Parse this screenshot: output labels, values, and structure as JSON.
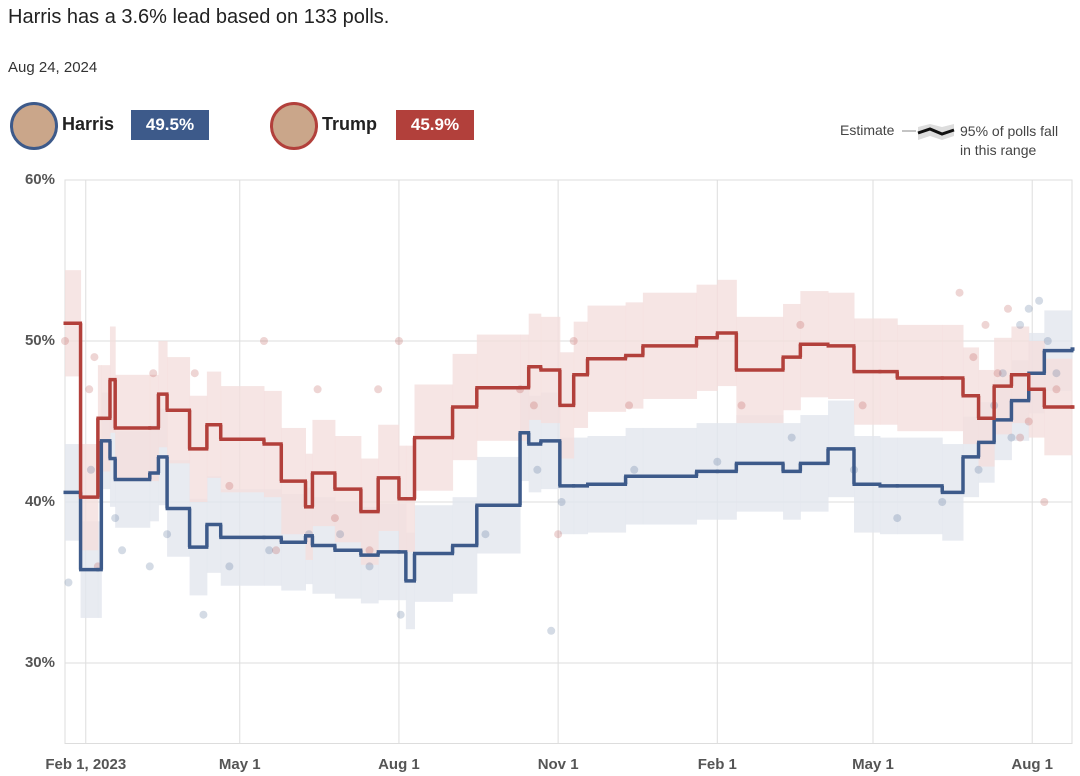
{
  "chart_data": {
    "type": "line",
    "title": "Harris has a 3.6% lead based on 133 polls.",
    "subtitle": "Aug 24, 2024",
    "legend": {
      "line_label": "Estimate",
      "band_label": "95% of polls fall in this range"
    },
    "x": [
      "2023-01-20",
      "2023-01-29",
      "2023-02-08",
      "2023-02-10",
      "2023-02-15",
      "2023-02-18",
      "2023-03-10",
      "2023-03-15",
      "2023-03-20",
      "2023-04-02",
      "2023-04-12",
      "2023-04-20",
      "2023-05-15",
      "2023-05-25",
      "2023-06-08",
      "2023-06-12",
      "2023-06-25",
      "2023-07-10",
      "2023-07-20",
      "2023-08-01",
      "2023-08-05",
      "2023-08-10",
      "2023-09-01",
      "2023-09-15",
      "2023-10-10",
      "2023-10-15",
      "2023-10-22",
      "2023-11-02",
      "2023-11-10",
      "2023-11-18",
      "2023-12-10",
      "2023-12-20",
      "2024-01-20",
      "2024-02-01",
      "2024-02-12",
      "2024-03-10",
      "2024-03-20",
      "2024-04-05",
      "2024-04-20",
      "2024-05-05",
      "2024-05-15",
      "2024-06-10",
      "2024-06-22",
      "2024-07-01",
      "2024-07-10",
      "2024-07-20",
      "2024-07-30",
      "2024-08-08",
      "2024-08-24"
    ],
    "series": [
      {
        "name": "Harris",
        "color": "#3d5a8a",
        "band_color": "#e2e6ee",
        "current": 49.5,
        "current_label": "49.5%",
        "values": [
          40.6,
          35.8,
          35.8,
          43.8,
          42.7,
          41.4,
          41.8,
          42.8,
          39.6,
          37.2,
          38.6,
          37.8,
          37.8,
          37.5,
          37.9,
          37.3,
          37.0,
          36.7,
          36.9,
          36.9,
          35.1,
          36.8,
          37.3,
          39.8,
          44.3,
          43.6,
          43.8,
          41.0,
          41.0,
          41.1,
          41.6,
          41.6,
          41.9,
          41.9,
          42.4,
          41.9,
          42.4,
          43.3,
          41.1,
          41.0,
          41.0,
          40.6,
          42.8,
          43.7,
          45.1,
          46.3,
          48.0,
          49.4,
          49.5
        ],
        "band_upper": [
          43.6,
          38.8,
          38.8,
          46.8,
          45.7,
          44.4,
          44.8,
          45.8,
          42.6,
          40.2,
          41.6,
          40.8,
          40.8,
          40.5,
          40.9,
          40.3,
          40.0,
          39.7,
          39.9,
          39.9,
          38.1,
          39.8,
          40.3,
          42.8,
          47.3,
          46.6,
          46.8,
          44.0,
          44.0,
          44.1,
          44.6,
          44.6,
          44.9,
          44.9,
          45.4,
          44.9,
          45.4,
          46.3,
          44.1,
          44.0,
          44.0,
          43.6,
          45.3,
          46.2,
          47.6,
          48.8,
          50.5,
          51.9,
          52.0
        ],
        "band_lower": [
          37.6,
          32.8,
          32.8,
          40.8,
          39.7,
          38.4,
          38.8,
          39.8,
          36.6,
          34.2,
          35.6,
          34.8,
          34.8,
          34.5,
          34.9,
          34.3,
          34.0,
          33.7,
          33.9,
          33.9,
          32.1,
          33.8,
          34.3,
          36.8,
          41.3,
          40.6,
          40.8,
          38.0,
          38.0,
          38.1,
          38.6,
          38.6,
          38.9,
          38.9,
          39.4,
          38.9,
          39.4,
          40.3,
          38.1,
          38.0,
          38.0,
          37.6,
          40.3,
          41.2,
          42.6,
          43.8,
          45.5,
          46.9,
          47.0
        ],
        "polls": {
          "x": [
            "2023-01-22",
            "2023-02-04",
            "2023-02-18",
            "2023-02-22",
            "2023-03-10",
            "2023-03-20",
            "2023-04-10",
            "2023-04-25",
            "2023-05-18",
            "2023-06-10",
            "2023-06-28",
            "2023-07-15",
            "2023-08-02",
            "2023-09-20",
            "2023-10-20",
            "2023-10-28",
            "2023-11-03",
            "2023-12-15",
            "2024-02-01",
            "2024-03-15",
            "2024-04-20",
            "2024-05-15",
            "2024-06-10",
            "2024-07-01",
            "2024-07-10",
            "2024-07-15",
            "2024-07-20",
            "2024-07-25",
            "2024-07-30",
            "2024-08-05",
            "2024-08-10",
            "2024-08-15"
          ],
          "values": [
            35,
            42,
            39,
            37,
            36,
            38,
            33,
            36,
            37,
            38,
            38,
            36,
            33,
            38,
            42,
            32,
            40,
            42,
            42.5,
            44,
            42,
            39,
            40,
            42,
            46,
            48,
            44,
            51,
            52,
            52.5,
            50,
            48
          ]
        }
      },
      {
        "name": "Trump",
        "color": "#b2403b",
        "band_color": "#f4dedd",
        "current": 45.9,
        "current_label": "45.9%",
        "values": [
          51.1,
          40.3,
          45.2,
          45.2,
          47.6,
          44.6,
          44.6,
          46.7,
          45.7,
          43.3,
          44.8,
          43.9,
          43.6,
          41.3,
          39.7,
          41.8,
          40.8,
          39.4,
          41.5,
          40.2,
          40.2,
          44.0,
          45.9,
          47.1,
          47.1,
          48.4,
          48.2,
          46.0,
          47.9,
          48.9,
          49.1,
          49.7,
          50.2,
          50.5,
          48.2,
          49.0,
          49.8,
          49.7,
          48.1,
          48.1,
          47.7,
          47.7,
          46.6,
          45.2,
          47.2,
          47.9,
          47.0,
          45.9,
          45.9
        ],
        "band_upper": [
          54.4,
          43.6,
          48.5,
          48.5,
          50.9,
          47.9,
          47.9,
          50.0,
          49.0,
          46.6,
          48.1,
          47.2,
          46.9,
          44.6,
          43.0,
          45.1,
          44.1,
          42.7,
          44.8,
          43.5,
          43.5,
          47.3,
          49.2,
          50.4,
          50.4,
          51.7,
          51.5,
          49.3,
          51.2,
          52.2,
          52.4,
          53.0,
          53.5,
          53.8,
          51.5,
          52.3,
          53.1,
          53.0,
          51.4,
          51.4,
          51.0,
          51.0,
          49.6,
          48.2,
          50.2,
          50.9,
          50.0,
          48.9,
          48.9
        ],
        "band_lower": [
          47.8,
          37.0,
          41.9,
          41.9,
          44.3,
          41.3,
          41.3,
          43.4,
          42.4,
          40.0,
          41.5,
          40.6,
          40.3,
          38.0,
          36.4,
          38.5,
          37.5,
          36.1,
          38.2,
          36.9,
          36.9,
          40.7,
          42.6,
          43.8,
          43.8,
          45.1,
          44.9,
          42.7,
          44.6,
          45.6,
          45.8,
          46.4,
          46.9,
          47.2,
          44.9,
          45.7,
          46.5,
          46.4,
          44.8,
          44.8,
          44.4,
          44.4,
          43.6,
          42.2,
          44.2,
          44.9,
          44.0,
          42.9,
          42.9
        ],
        "polls": {
          "x": [
            "2023-01-20",
            "2023-02-03",
            "2023-02-06",
            "2023-02-08",
            "2023-03-12",
            "2023-04-05",
            "2023-04-25",
            "2023-05-15",
            "2023-05-22",
            "2023-06-15",
            "2023-06-25",
            "2023-07-15",
            "2023-07-20",
            "2023-08-01",
            "2023-10-10",
            "2023-10-18",
            "2023-11-01",
            "2023-11-10",
            "2023-12-12",
            "2024-02-15",
            "2024-03-20",
            "2024-04-25",
            "2024-06-20",
            "2024-06-28",
            "2024-07-05",
            "2024-07-12",
            "2024-07-18",
            "2024-07-25",
            "2024-07-30",
            "2024-08-08",
            "2024-08-15"
          ],
          "values": [
            50,
            47,
            49,
            36,
            48,
            48,
            41,
            50,
            37,
            47,
            39,
            37,
            47,
            50,
            47,
            46,
            38,
            50,
            46,
            46,
            51,
            46,
            53,
            49,
            51,
            48,
            52,
            44,
            45,
            40,
            47
          ]
        }
      }
    ],
    "xlim": [
      "2023-01-20",
      "2024-08-24"
    ],
    "xticks": [
      {
        "value": "2023-02-01",
        "label": "Feb 1, 2023"
      },
      {
        "value": "2023-05-01",
        "label": "May 1"
      },
      {
        "value": "2023-08-01",
        "label": "Aug 1"
      },
      {
        "value": "2023-11-01",
        "label": "Nov 1"
      },
      {
        "value": "2024-02-01",
        "label": "Feb 1"
      },
      {
        "value": "2024-05-01",
        "label": "May 1"
      },
      {
        "value": "2024-08-01",
        "label": "Aug 1"
      }
    ],
    "ylim": [
      25,
      60
    ],
    "yticks": [
      {
        "value": 30,
        "label": "30%"
      },
      {
        "value": 40,
        "label": "40%"
      },
      {
        "value": 50,
        "label": "50%"
      },
      {
        "value": 60,
        "label": "60%"
      }
    ],
    "grid": true
  }
}
